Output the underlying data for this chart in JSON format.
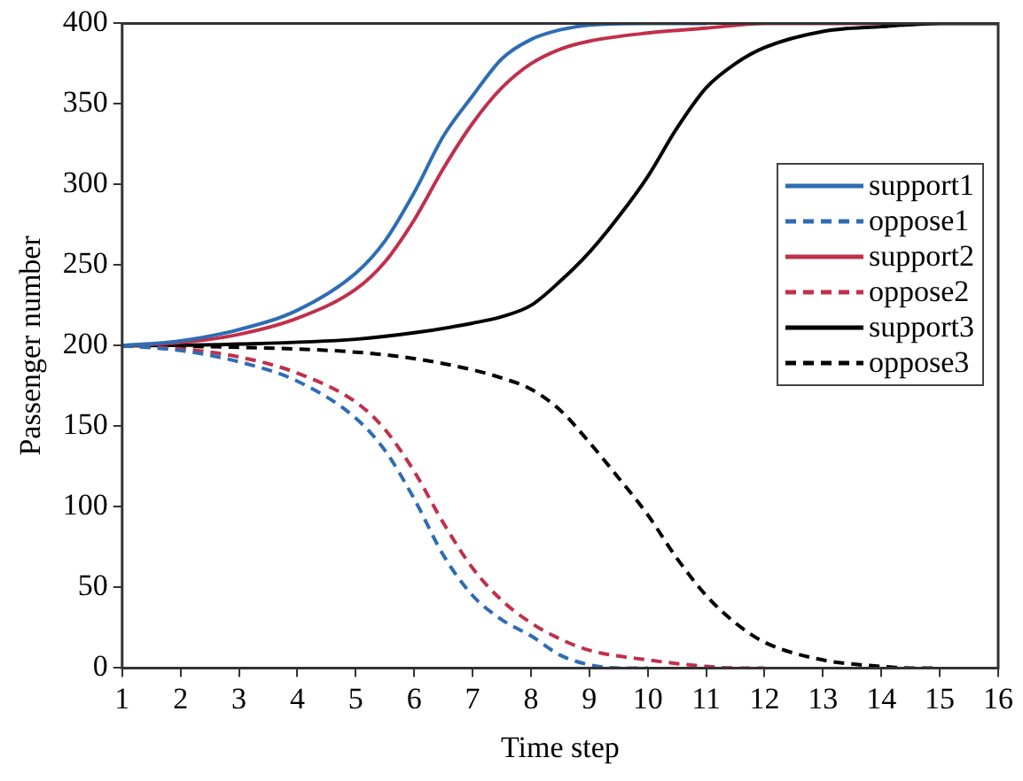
{
  "chart_data": {
    "type": "line",
    "xlabel": "Time step",
    "ylabel": "Passenger number",
    "xlim": [
      1,
      16
    ],
    "xticks": [
      1,
      2,
      3,
      4,
      5,
      6,
      7,
      8,
      9,
      10,
      11,
      12,
      13,
      14,
      15,
      16
    ],
    "ylim": [
      0,
      400
    ],
    "yticks": [
      0,
      50,
      100,
      150,
      200,
      250,
      300,
      350,
      400
    ],
    "grid": false,
    "legend": "right",
    "marker": "none",
    "series": [
      {
        "name": "support1",
        "color": "#2e6db4",
        "line_style": "solid",
        "x": [
          1,
          2,
          3,
          4,
          5,
          5.5,
          6,
          6.5,
          7,
          7.5,
          8,
          8.5,
          9,
          10,
          11
        ],
        "values": [
          200,
          203,
          210,
          222,
          245,
          265,
          295,
          330,
          355,
          378,
          390,
          396,
          399,
          400,
          400
        ]
      },
      {
        "name": "oppose1",
        "color": "#2e6db4",
        "line_style": "dashed",
        "x": [
          1,
          2,
          3,
          4,
          5,
          5.5,
          6,
          6.5,
          7,
          7.5,
          8,
          8.5,
          9,
          9.5,
          10
        ],
        "values": [
          200,
          197,
          190,
          178,
          155,
          135,
          105,
          70,
          45,
          30,
          20,
          8,
          2,
          0,
          0
        ]
      },
      {
        "name": "support2",
        "color": "#c0304a",
        "line_style": "solid",
        "x": [
          1,
          2,
          3,
          4,
          5,
          5.5,
          6,
          6.5,
          7,
          7.5,
          8,
          8.5,
          9,
          10,
          11,
          12,
          14
        ],
        "values": [
          200,
          202,
          207,
          217,
          235,
          252,
          278,
          310,
          338,
          360,
          375,
          384,
          389,
          394,
          397,
          400,
          400
        ]
      },
      {
        "name": "oppose2",
        "color": "#c0304a",
        "line_style": "dashed",
        "x": [
          1,
          2,
          3,
          4,
          5,
          5.5,
          6,
          6.5,
          7,
          7.5,
          8,
          8.5,
          9,
          10,
          11,
          11.5,
          12
        ],
        "values": [
          200,
          198,
          193,
          183,
          165,
          148,
          122,
          90,
          62,
          42,
          28,
          18,
          11,
          5,
          1,
          0,
          0
        ]
      },
      {
        "name": "support3",
        "color": "#000000",
        "line_style": "solid",
        "x": [
          1,
          3,
          5,
          6,
          7,
          7.5,
          8,
          8.5,
          9,
          9.5,
          10,
          10.5,
          11,
          11.5,
          12,
          13,
          14,
          15,
          16
        ],
        "values": [
          200,
          201,
          204,
          208,
          214,
          218,
          225,
          240,
          258,
          280,
          305,
          335,
          360,
          375,
          385,
          395,
          398,
          400,
          400
        ]
      },
      {
        "name": "oppose3",
        "color": "#000000",
        "line_style": "dashed",
        "x": [
          1,
          3,
          5,
          6,
          7,
          7.5,
          8,
          8.5,
          9,
          9.5,
          10,
          10.5,
          11,
          11.5,
          12,
          13,
          14,
          14.5,
          15
        ],
        "values": [
          200,
          199,
          196,
          192,
          185,
          180,
          173,
          160,
          140,
          118,
          95,
          68,
          45,
          28,
          16,
          5,
          1,
          0,
          0
        ]
      }
    ]
  }
}
